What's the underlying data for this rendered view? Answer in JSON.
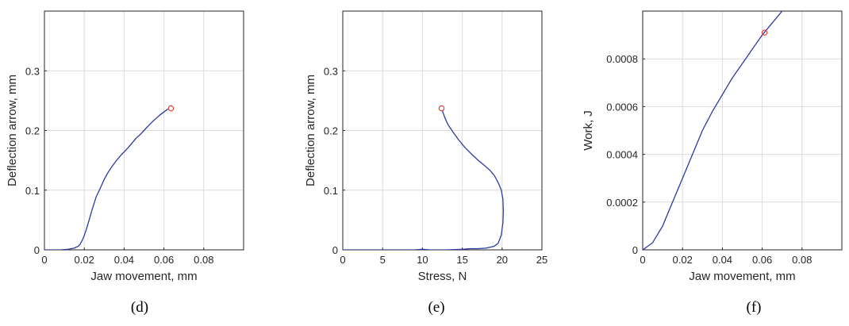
{
  "chart_data": [
    {
      "type": "line",
      "caption": "(d)",
      "xlabel": "Jaw movement, mm",
      "ylabel": "Deflection arrow, mm",
      "xlim": [
        0,
        0.1
      ],
      "ylim": [
        0,
        0.4
      ],
      "xticks": [
        0,
        0.02,
        0.04,
        0.06,
        0.08
      ],
      "xtick_labels": [
        "0",
        "0.02",
        "0.04",
        "0.06",
        "0.08"
      ],
      "yticks": [
        0,
        0.1,
        0.2,
        0.3
      ],
      "ytick_labels": [
        "0",
        "0.1",
        "0.2",
        "0.3"
      ],
      "grid": true,
      "line_color": "#2b3a9e",
      "marker_color": "#e8332a",
      "series": [
        {
          "x": [
            0.0,
            0.008,
            0.012,
            0.015,
            0.017,
            0.018,
            0.019,
            0.02,
            0.021,
            0.022,
            0.024,
            0.026,
            0.028,
            0.03,
            0.032,
            0.034,
            0.036,
            0.038,
            0.04,
            0.042,
            0.044,
            0.046,
            0.048,
            0.05,
            0.052,
            0.054,
            0.056,
            0.058,
            0.06,
            0.062
          ],
          "y": [
            0.0,
            0.0,
            0.001,
            0.003,
            0.006,
            0.01,
            0.016,
            0.024,
            0.034,
            0.045,
            0.068,
            0.089,
            0.103,
            0.118,
            0.13,
            0.14,
            0.149,
            0.157,
            0.164,
            0.171,
            0.179,
            0.187,
            0.193,
            0.2,
            0.207,
            0.214,
            0.22,
            0.226,
            0.231,
            0.236
          ]
        }
      ],
      "marker": {
        "x": 0.0635,
        "y": 0.237
      }
    },
    {
      "type": "line",
      "caption": "(e)",
      "xlabel": "Stress, N",
      "ylabel": "Deflection arrow, mm",
      "xlim": [
        0,
        25
      ],
      "ylim": [
        0,
        0.4
      ],
      "xticks": [
        0,
        5,
        10,
        15,
        20,
        25
      ],
      "xtick_labels": [
        "0",
        "5",
        "10",
        "15",
        "20",
        "25"
      ],
      "yticks": [
        0,
        0.1,
        0.2,
        0.3
      ],
      "ytick_labels": [
        "0",
        "0.1",
        "0.2",
        "0.3"
      ],
      "grid": true,
      "line_color": "#2b3a9e",
      "marker_color": "#e8332a",
      "series": [
        {
          "x": [
            0.0,
            5.0,
            9.0,
            10.0,
            11.0,
            13.0,
            15.0,
            16.0,
            17.0,
            18.0,
            19.0,
            19.5,
            19.9,
            20.1,
            20.15,
            20.1,
            19.9,
            19.6,
            19.3,
            19.0,
            18.5,
            17.9,
            17.0,
            16.2,
            15.3,
            14.5,
            13.8,
            13.2,
            12.8,
            12.5
          ],
          "y": [
            0.0,
            0.0,
            0.0,
            0.001,
            0.0,
            0.0,
            0.001,
            0.002,
            0.002,
            0.003,
            0.006,
            0.011,
            0.025,
            0.045,
            0.065,
            0.085,
            0.1,
            0.11,
            0.118,
            0.125,
            0.133,
            0.14,
            0.15,
            0.16,
            0.172,
            0.185,
            0.198,
            0.21,
            0.222,
            0.233
          ]
        }
      ],
      "marker": {
        "x": 12.4,
        "y": 0.237
      }
    },
    {
      "type": "line",
      "caption": "(f)",
      "xlabel": "Jaw movement, mm",
      "ylabel": "Work, J",
      "xlim": [
        0,
        0.1
      ],
      "ylim": [
        0,
        0.001
      ],
      "xticks": [
        0,
        0.02,
        0.04,
        0.06,
        0.08
      ],
      "xtick_labels": [
        "0",
        "0.02",
        "0.04",
        "0.06",
        "0.08"
      ],
      "yticks": [
        0,
        0.0002,
        0.0004,
        0.0006,
        0.0008
      ],
      "ytick_labels": [
        "0",
        "0.0002",
        "0.0004",
        "0.0006",
        "0.0008"
      ],
      "grid": true,
      "line_color": "#2b3a9e",
      "marker_color": "#e8332a",
      "series": [
        {
          "x": [
            0.0,
            0.005,
            0.01,
            0.015,
            0.02,
            0.025,
            0.03,
            0.035,
            0.04,
            0.045,
            0.05,
            0.055,
            0.06,
            0.065,
            0.07
          ],
          "y": [
            0.0,
            3e-05,
            0.0001,
            0.0002,
            0.0003,
            0.0004,
            0.0005,
            0.00058,
            0.00065,
            0.00072,
            0.00078,
            0.00084,
            0.0009,
            0.00095,
            0.001
          ]
        }
      ],
      "marker": {
        "x": 0.0612,
        "y": 0.00091
      }
    }
  ]
}
